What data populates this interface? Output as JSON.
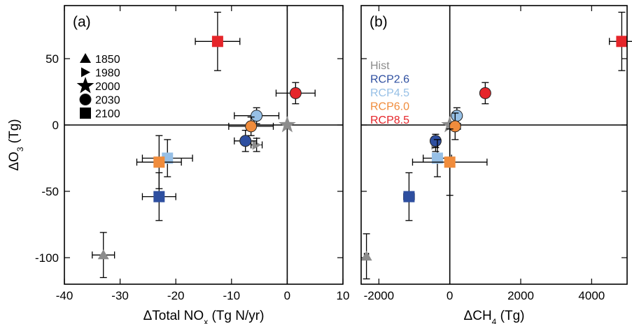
{
  "colors": {
    "hist": "#8c8c8c",
    "rcp26": "#2e4fa0",
    "rcp45": "#97c0e6",
    "rcp60": "#f08c3c",
    "rcp85": "#e5252a",
    "axis": "#000000"
  },
  "marker_legend": [
    {
      "label": "1850",
      "shape": "triangle"
    },
    {
      "label": "1980",
      "shape": "right-triangle"
    },
    {
      "label": "2000",
      "shape": "star"
    },
    {
      "label": "2030",
      "shape": "circle"
    },
    {
      "label": "2100",
      "shape": "square"
    }
  ],
  "color_legend": [
    {
      "label": "Hist",
      "color_key": "hist"
    },
    {
      "label": "RCP2.6",
      "color_key": "rcp26"
    },
    {
      "label": "RCP4.5",
      "color_key": "rcp45"
    },
    {
      "label": "RCP6.0",
      "color_key": "rcp60"
    },
    {
      "label": "RCP8.5",
      "color_key": "rcp85"
    }
  ],
  "chart_data": [
    {
      "type": "scatter",
      "panel_label": "(a)",
      "xlabel": "ΔTotal NOx (Tg N/yr)",
      "ylabel": "ΔO3 (Tg)",
      "xlim": [
        -40,
        10
      ],
      "ylim": [
        -120,
        90
      ],
      "xticks": [
        -40,
        -30,
        -20,
        -10,
        0,
        10
      ],
      "yticks": [
        -100,
        -50,
        0,
        50
      ],
      "zero_lines": true,
      "points": [
        {
          "name": "Hist 1850",
          "color_key": "hist",
          "shape": "triangle",
          "x": -33,
          "y": -98,
          "xerr": 2,
          "yerr": 17
        },
        {
          "name": "Hist 1980",
          "color_key": "hist",
          "shape": "right-triangle",
          "x": -5.5,
          "y": -15,
          "xerr": 1,
          "yerr": 5
        },
        {
          "name": "Hist 2000",
          "color_key": "hist",
          "shape": "star",
          "x": 0,
          "y": 0,
          "xerr": 0,
          "yerr": 0
        },
        {
          "name": "RCP2.6 2030",
          "color_key": "rcp26",
          "shape": "circle",
          "x": -7.5,
          "y": -12,
          "xerr": 2,
          "yerr": 8
        },
        {
          "name": "RCP2.6 2100",
          "color_key": "rcp26",
          "shape": "square",
          "x": -23,
          "y": -54,
          "xerr": 3,
          "yerr": 18
        },
        {
          "name": "RCP4.5 2030",
          "color_key": "rcp45",
          "shape": "circle",
          "x": -5.5,
          "y": 7,
          "xerr": 4,
          "yerr": 6
        },
        {
          "name": "RCP4.5 2100",
          "color_key": "rcp45",
          "shape": "square",
          "x": -21.5,
          "y": -25,
          "xerr": 4.5,
          "yerr": 14
        },
        {
          "name": "RCP6.0 2030",
          "color_key": "rcp60",
          "shape": "circle",
          "x": -6.5,
          "y": -1,
          "xerr": 4,
          "yerr": 7
        },
        {
          "name": "RCP6.0 2100",
          "color_key": "rcp60",
          "shape": "square",
          "x": -23,
          "y": -28,
          "xerr": 4,
          "yerr": 20
        },
        {
          "name": "RCP8.5 2030",
          "color_key": "rcp85",
          "shape": "circle",
          "x": 1.5,
          "y": 24,
          "xerr": 3.5,
          "yerr": 8
        },
        {
          "name": "RCP8.5 2100",
          "color_key": "rcp85",
          "shape": "square",
          "x": -12.5,
          "y": 63,
          "xerr": 4,
          "yerr": 22
        }
      ]
    },
    {
      "type": "scatter",
      "panel_label": "(b)",
      "xlabel": "ΔCH4 (Tg)",
      "ylabel": "",
      "xlim": [
        -2500,
        5000
      ],
      "ylim": [
        -120,
        90
      ],
      "xticks": [
        -2000,
        0,
        2000,
        4000
      ],
      "yticks": [
        -100,
        -50,
        0,
        50
      ],
      "zero_lines": true,
      "points": [
        {
          "name": "Hist 1850",
          "color_key": "hist",
          "shape": "triangle",
          "x": -2350,
          "y": -99,
          "xerr": 60,
          "yerr": 17
        },
        {
          "name": "Hist 1980",
          "color_key": "hist",
          "shape": "right-triangle",
          "x": -400,
          "y": -15,
          "xerr": 60,
          "yerr": 5
        },
        {
          "name": "Hist 2000",
          "color_key": "hist",
          "shape": "star",
          "x": 0,
          "y": 0,
          "xerr": 0,
          "yerr": 0
        },
        {
          "name": "RCP2.6 2030",
          "color_key": "rcp26",
          "shape": "circle",
          "x": -400,
          "y": -12,
          "xerr": 100,
          "yerr": 5
        },
        {
          "name": "RCP2.6 2100",
          "color_key": "rcp26",
          "shape": "square",
          "x": -1150,
          "y": -54,
          "xerr": 150,
          "yerr": 18
        },
        {
          "name": "RCP4.5 2030",
          "color_key": "rcp45",
          "shape": "circle",
          "x": 200,
          "y": 7,
          "xerr": 100,
          "yerr": 6
        },
        {
          "name": "RCP4.5 2100",
          "color_key": "rcp45",
          "shape": "square",
          "x": -350,
          "y": -25,
          "xerr": 400,
          "yerr": 14
        },
        {
          "name": "RCP6.0 2030",
          "color_key": "rcp60",
          "shape": "circle",
          "x": 150,
          "y": -1,
          "xerr": 150,
          "yerr": 10
        },
        {
          "name": "RCP6.0 2100",
          "color_key": "rcp60",
          "shape": "square",
          "x": 0,
          "y": -28,
          "xerr": 1050,
          "yerr": 25
        },
        {
          "name": "RCP8.5 2030",
          "color_key": "rcp85",
          "shape": "circle",
          "x": 1000,
          "y": 24,
          "xerr": 120,
          "yerr": 8
        },
        {
          "name": "RCP8.5 2100",
          "color_key": "rcp85",
          "shape": "square",
          "x": 4850,
          "y": 63,
          "xerr": 350,
          "yerr": 22
        }
      ]
    }
  ]
}
